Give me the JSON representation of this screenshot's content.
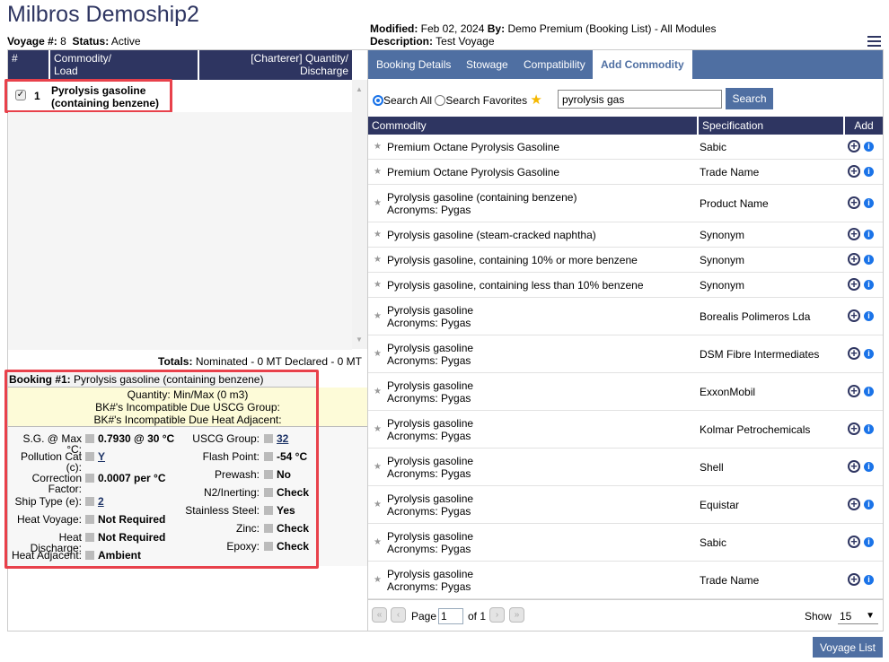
{
  "title": "Milbros Demoship2",
  "voyage": {
    "num_label": "Voyage #:",
    "num": "8",
    "status_label": "Status:",
    "status": "Active"
  },
  "meta": {
    "modified_label": "Modified:",
    "modified": "Feb 02, 2024",
    "by_label": "By:",
    "by": "Demo Premium (Booking List) - All Modules",
    "desc_label": "Description:",
    "desc": "Test Voyage"
  },
  "left": {
    "headers": [
      "#",
      "Commodity/\nLoad",
      "[Charterer] Quantity/\nDischarge"
    ],
    "rows": [
      {
        "num": "1",
        "commodity": "Pyrolysis gasoline (containing benzene)",
        "checked": true
      }
    ],
    "totals_label": "Totals:",
    "totals": "Nominated - 0 MT Declared - 0 MT",
    "booking": {
      "label": "Booking #1:",
      "name": "Pyrolysis gasoline (containing benzene)",
      "notes": [
        "Quantity: Min/Max (0 m3)",
        "BK#'s Incompatible Due USCG Group:",
        "BK#'s Incompatible Due Heat Adjacent:"
      ],
      "left_fields": [
        {
          "label": "S.G. @ Max °C:",
          "value": "0.7930 @ 30 °C"
        },
        {
          "label": "Pollution Cat (c):",
          "value": "Y",
          "link": true
        },
        {
          "label": "Correction Factor:",
          "value": "0.0007 per °C"
        },
        {
          "label": "Ship Type (e):",
          "value": "2",
          "link": true
        },
        {
          "label": "Heat Voyage:",
          "value": "Not Required"
        },
        {
          "label": "Heat Discharge:",
          "value": "Not Required"
        },
        {
          "label": "Heat Adjacent:",
          "value": "Ambient"
        }
      ],
      "right_fields": [
        {
          "label": "USCG Group:",
          "value": "32",
          "link": true
        },
        {
          "label": "Flash Point:",
          "value": "-54 °C"
        },
        {
          "label": "Prewash:",
          "value": "No"
        },
        {
          "label": "N2/Inerting:",
          "value": "Check"
        },
        {
          "label": "Stainless Steel:",
          "value": "Yes"
        },
        {
          "label": "Zinc:",
          "value": "Check"
        },
        {
          "label": "Epoxy:",
          "value": "Check"
        }
      ]
    }
  },
  "tabs": [
    "Booking Details",
    "Stowage",
    "Compatibility",
    "Add Commodity"
  ],
  "active_tab": "Add Commodity",
  "search": {
    "all_label": "Search All",
    "fav_label": "Search Favorites",
    "value": "pyrolysis gas",
    "button": "Search",
    "mode": "all"
  },
  "table": {
    "headers": [
      "Commodity",
      "Specification",
      "Add"
    ],
    "rows": [
      {
        "c": "Premium Octane Pyrolysis Gasoline",
        "a": "",
        "s": "Sabic"
      },
      {
        "c": "Premium Octane Pyrolysis Gasoline",
        "a": "",
        "s": "Trade Name"
      },
      {
        "c": "Pyrolysis gasoline (containing benzene)",
        "a": "Acronyms: Pygas",
        "s": "Product Name"
      },
      {
        "c": "Pyrolysis gasoline (steam-cracked naphtha)",
        "a": "",
        "s": "Synonym"
      },
      {
        "c": "Pyrolysis gasoline, containing 10% or more benzene",
        "a": "",
        "s": "Synonym"
      },
      {
        "c": "Pyrolysis gasoline, containing less than 10% benzene",
        "a": "",
        "s": "Synonym"
      },
      {
        "c": "Pyrolysis gasoline",
        "a": "Acronyms: Pygas",
        "s": "Borealis Polimeros Lda"
      },
      {
        "c": "Pyrolysis gasoline",
        "a": "Acronyms: Pygas",
        "s": "DSM Fibre Intermediates"
      },
      {
        "c": "Pyrolysis gasoline",
        "a": "Acronyms: Pygas",
        "s": "ExxonMobil"
      },
      {
        "c": "Pyrolysis gasoline",
        "a": "Acronyms: Pygas",
        "s": "Kolmar Petrochemicals"
      },
      {
        "c": "Pyrolysis gasoline",
        "a": "Acronyms: Pygas",
        "s": "Shell"
      },
      {
        "c": "Pyrolysis gasoline",
        "a": "Acronyms: Pygas",
        "s": "Equistar"
      },
      {
        "c": "Pyrolysis gasoline",
        "a": "Acronyms: Pygas",
        "s": "Sabic"
      },
      {
        "c": "Pyrolysis gasoline",
        "a": "Acronyms: Pygas",
        "s": "Trade Name"
      }
    ]
  },
  "pager": {
    "page_label": "Page",
    "page": "1",
    "of_label": "of 1",
    "show_label": "Show",
    "show": "15"
  },
  "voyage_list_button": "Voyage List",
  "colors": {
    "navy": "#2e3561",
    "accent": "#4f6fa2",
    "highlight": "#e8414b",
    "note_bg": "#fdfbd8"
  }
}
